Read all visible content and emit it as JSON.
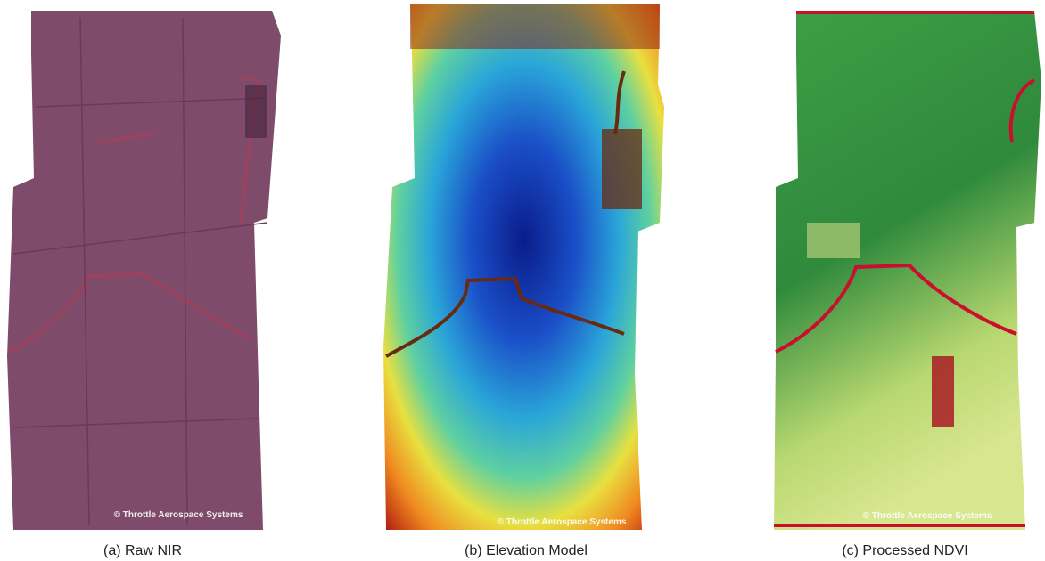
{
  "panels": [
    {
      "caption": "(a) Raw NIR",
      "watermark": "© Throttle Aerospace Systems"
    },
    {
      "caption": "(b) Elevation Model",
      "watermark": "© Throttle Aerospace Systems"
    },
    {
      "caption": "(c) Processed NDVI",
      "watermark": "© Throttle Aerospace Systems"
    }
  ]
}
